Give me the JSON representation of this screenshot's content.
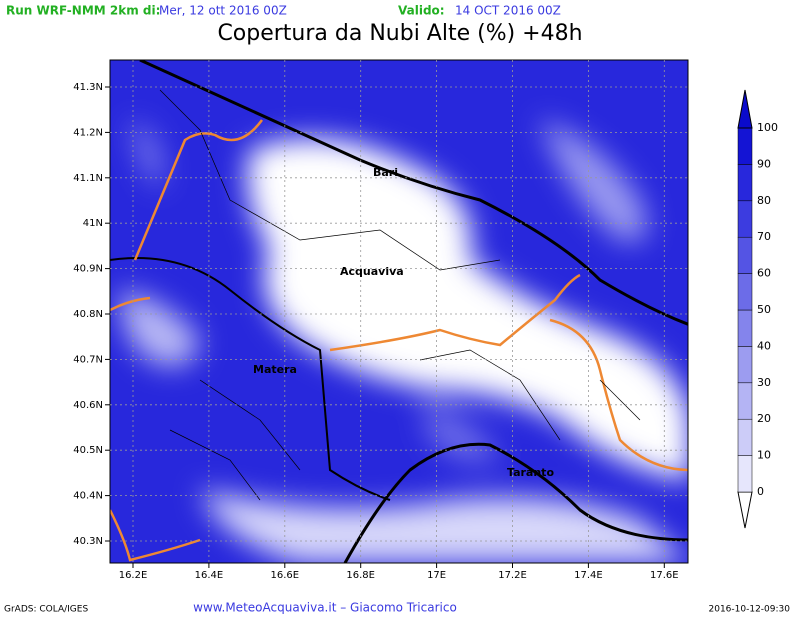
{
  "header": {
    "run_label": "Run WRF-NMM 2km di:",
    "run_date": "Mer, 12 ott 2016 00Z",
    "valid_label": "Valido:",
    "valid_date": "14 OCT 2016 00Z",
    "title": "Copertura da Nubi Alte (%) +48h"
  },
  "map": {
    "x_ticks": [
      "16.2E",
      "16.4E",
      "16.6E",
      "16.8E",
      "17E",
      "17.2E",
      "17.4E",
      "17.6E"
    ],
    "y_ticks": [
      "41.3N",
      "41.2N",
      "41.1N",
      "41N",
      "40.9N",
      "40.8N",
      "40.7N",
      "40.6N",
      "40.5N",
      "40.4N",
      "40.3N"
    ],
    "places": [
      "Bari",
      "Acquaviva",
      "Matera",
      "Taranto"
    ]
  },
  "colorbar": {
    "labels": [
      "100",
      "90",
      "80",
      "70",
      "60",
      "50",
      "40",
      "30",
      "20",
      "10",
      "0"
    ]
  },
  "footer": {
    "left": "GrADS: COLA/IGES",
    "center": "www.MeteoAcquaviva.it  –  Giacomo Tricarico",
    "right": "2016-10-12-09:30"
  }
}
